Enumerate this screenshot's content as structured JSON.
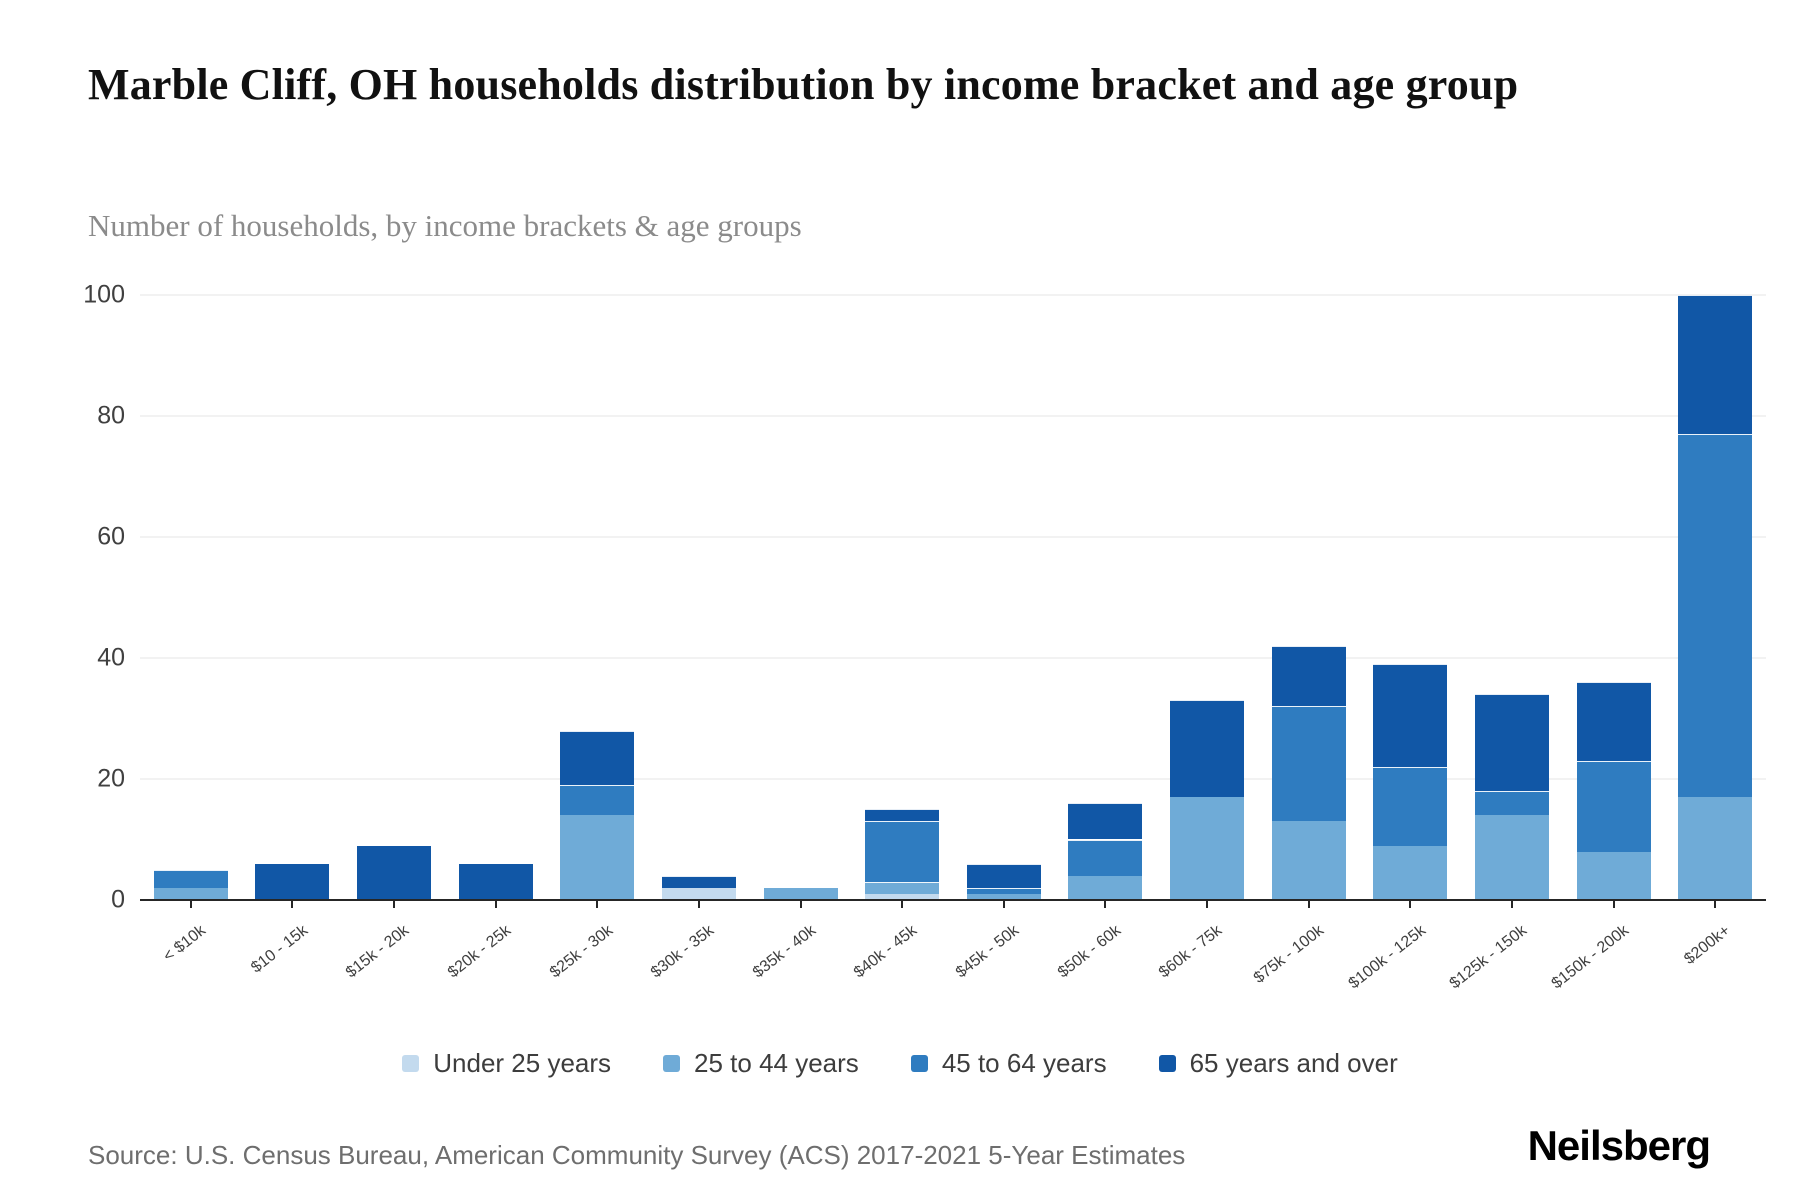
{
  "header": {
    "title": "Marble Cliff, OH households distribution by income bracket and age group",
    "subtitle": "Number of households, by income brackets & age groups"
  },
  "chart_data": {
    "type": "bar",
    "stacked": true,
    "title": "Marble Cliff, OH households distribution by income bracket and age group",
    "subtitle": "Number of households, by income brackets & age groups",
    "categories": [
      "< $10k",
      "$10 - 15k",
      "$15k - 20k",
      "$20k - 25k",
      "$25k - 30k",
      "$30k - 35k",
      "$35k - 40k",
      "$40k - 45k",
      "$45k - 50k",
      "$50k - 60k",
      "$60k - 75k",
      "$75k - 100k",
      "$100k - 125k",
      "$125k - 150k",
      "$150k - 200k",
      "$200k+"
    ],
    "series": [
      {
        "name": "Under 25 years",
        "color": "#c3daee",
        "values": [
          0,
          0,
          0,
          0,
          0,
          2,
          0,
          1,
          0,
          0,
          0,
          0,
          0,
          0,
          0,
          0
        ]
      },
      {
        "name": "25 to 44 years",
        "color": "#6fabd7",
        "values": [
          2,
          0,
          0,
          0,
          14,
          0,
          2,
          2,
          1,
          4,
          17,
          13,
          9,
          14,
          8,
          17
        ]
      },
      {
        "name": "45 to 64 years",
        "color": "#2f7cc0",
        "values": [
          3,
          0,
          0,
          0,
          5,
          0,
          0,
          10,
          1,
          6,
          0,
          19,
          13,
          4,
          15,
          60
        ]
      },
      {
        "name": "65 years and over",
        "color": "#1157a6",
        "values": [
          0,
          6,
          9,
          6,
          9,
          2,
          0,
          2,
          4,
          6,
          16,
          10,
          17,
          16,
          13,
          23
        ]
      }
    ],
    "totals": [
      5,
      6,
      9,
      6,
      28,
      4,
      2,
      15,
      6,
      16,
      33,
      42,
      39,
      34,
      36,
      100
    ],
    "xlabel": "",
    "ylabel": "",
    "ylim": [
      0,
      100
    ],
    "yticks": [
      0,
      20,
      40,
      60,
      80,
      100
    ],
    "grid": true,
    "legend_position": "bottom"
  },
  "footer": {
    "source": "Source: U.S. Census Bureau, American Community Survey (ACS) 2017-2021 5-Year Estimates",
    "brand": "Neilsberg"
  }
}
